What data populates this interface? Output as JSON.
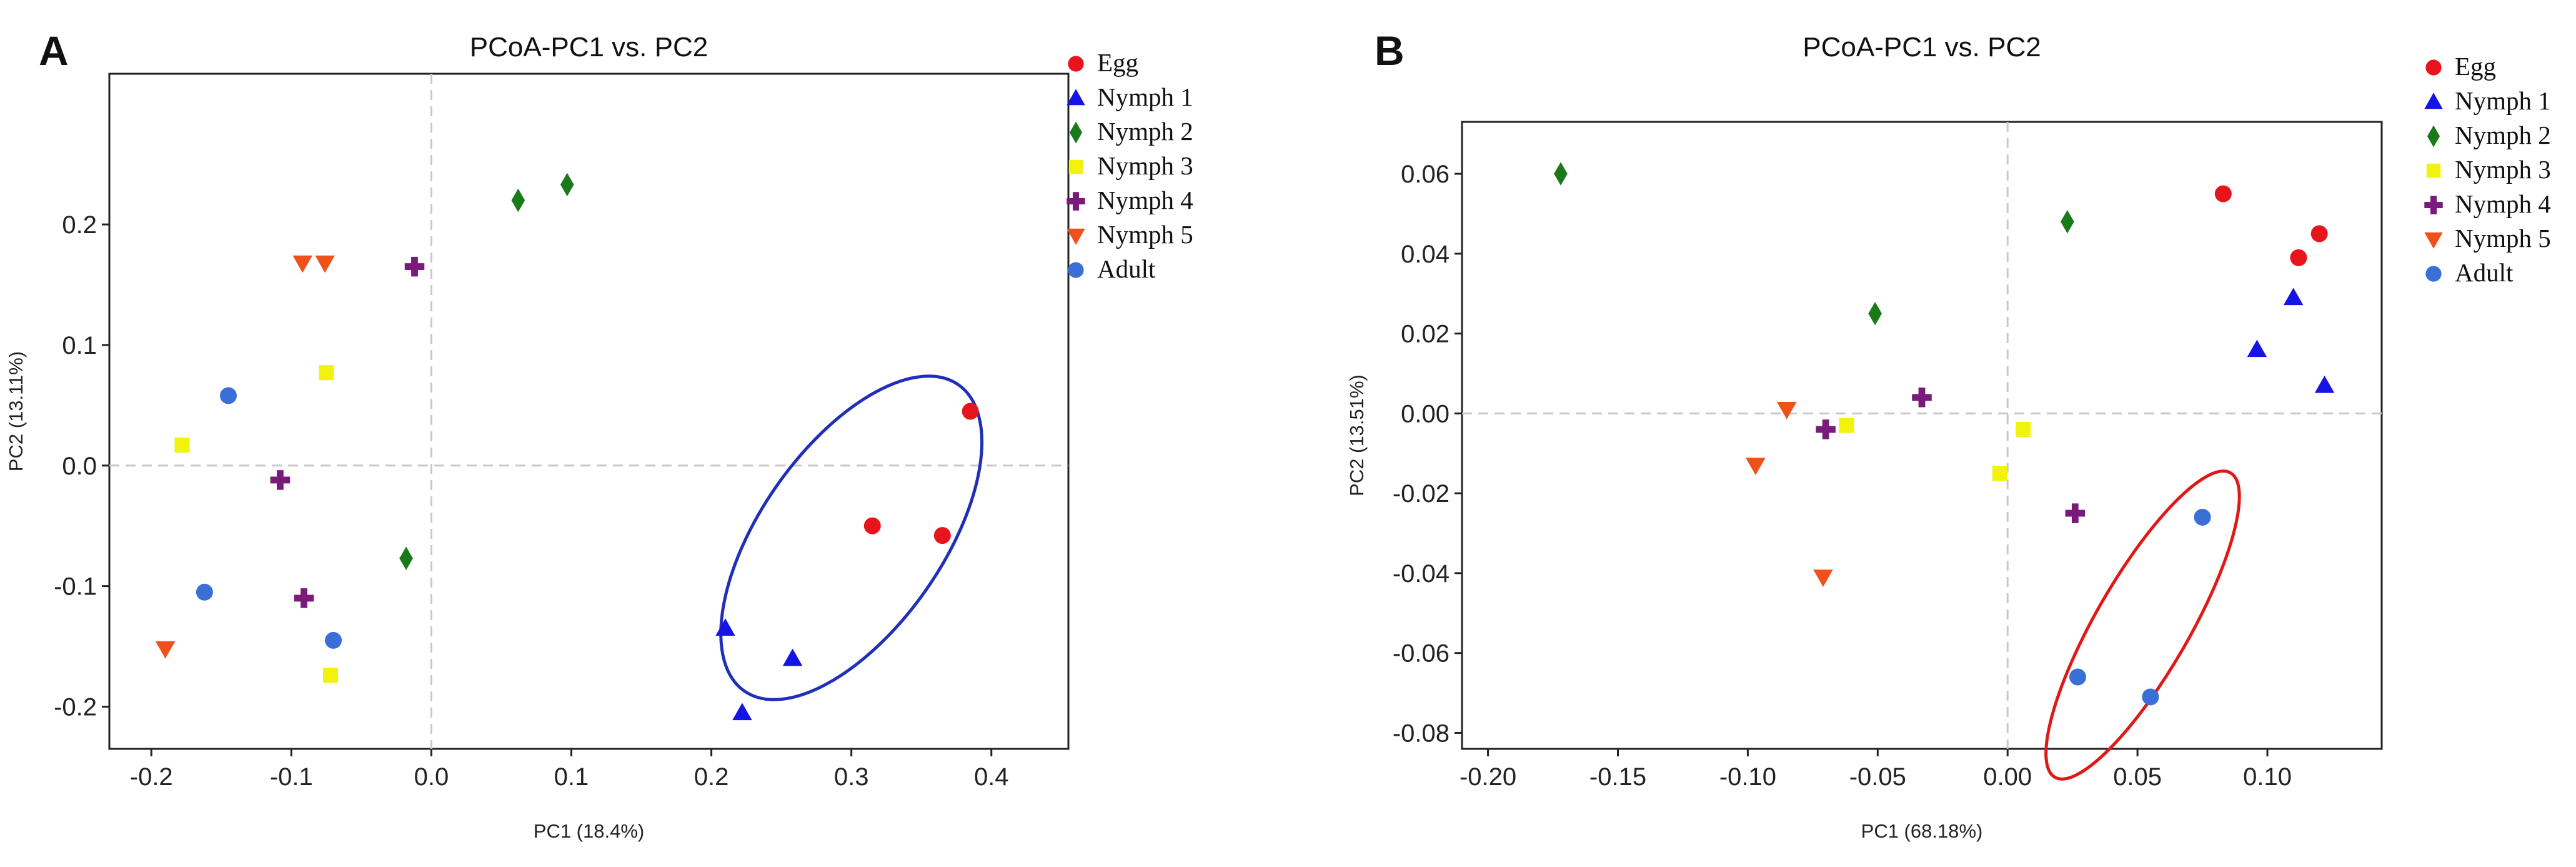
{
  "figure": {
    "panel_labels": [
      "A",
      "B"
    ]
  },
  "chart_data": [
    {
      "type": "scatter",
      "panel_label": "A",
      "title": "PCoA-PC1 vs. PC2",
      "xlabel": "PC1 (18.4%)",
      "ylabel": "PC2 (13.11%)",
      "xlim": [
        -0.23,
        0.455
      ],
      "ylim": [
        -0.235,
        0.325
      ],
      "xticks": [
        -0.2,
        -0.1,
        0.0,
        0.1,
        0.2,
        0.3,
        0.4
      ],
      "xtick_labels": [
        "-0.2",
        "-0.1",
        "0.0",
        "0.1",
        "0.2",
        "0.3",
        "0.4"
      ],
      "yticks": [
        -0.2,
        -0.1,
        0.0,
        0.1,
        0.2
      ],
      "ytick_labels": [
        "-0.2",
        "-0.1",
        "0.0",
        "0.1",
        "0.2"
      ],
      "reference_lines": {
        "x": 0,
        "y": 0
      },
      "legend_position": "top-right outside",
      "series": [
        {
          "name": "Egg",
          "marker": "circle",
          "color": "#e8141c",
          "points": [
            [
              0.315,
              -0.05
            ],
            [
              0.365,
              -0.058
            ],
            [
              0.385,
              0.045
            ]
          ]
        },
        {
          "name": "Nymph 1",
          "marker": "triangle-up",
          "color": "#1414e6",
          "points": [
            [
              0.21,
              -0.135
            ],
            [
              0.258,
              -0.16
            ],
            [
              0.222,
              -0.205
            ]
          ]
        },
        {
          "name": "Nymph 2",
          "marker": "diamond",
          "color": "#1a7a1a",
          "points": [
            [
              0.062,
              0.22
            ],
            [
              0.097,
              0.233
            ],
            [
              -0.018,
              -0.077
            ]
          ]
        },
        {
          "name": "Nymph 3",
          "marker": "square",
          "color": "#f2f20a",
          "points": [
            [
              -0.178,
              0.017
            ],
            [
              -0.075,
              0.077
            ],
            [
              -0.072,
              -0.174
            ]
          ]
        },
        {
          "name": "Nymph 4",
          "marker": "plus",
          "color": "#7a1a7a",
          "points": [
            [
              -0.012,
              0.165
            ],
            [
              -0.108,
              -0.012
            ],
            [
              -0.091,
              -0.11
            ]
          ]
        },
        {
          "name": "Nymph 5",
          "marker": "triangle-down",
          "color": "#f0501a",
          "points": [
            [
              -0.092,
              0.168
            ],
            [
              -0.076,
              0.168
            ],
            [
              -0.19,
              -0.152
            ]
          ]
        },
        {
          "name": "Adult",
          "marker": "circle",
          "color": "#3a6fd8",
          "points": [
            [
              -0.145,
              0.058
            ],
            [
              -0.162,
              -0.105
            ],
            [
              -0.07,
              -0.145
            ]
          ]
        }
      ],
      "annotations": [
        {
          "type": "ellipse",
          "color": "#1f2fb8",
          "center": [
            0.3,
            -0.06
          ],
          "radii_data": [
            0.065,
            0.155
          ],
          "rotation_deg": 35
        }
      ]
    },
    {
      "type": "scatter",
      "panel_label": "B",
      "title": "PCoA-PC1 vs. PC2",
      "xlabel": "PC1 (68.18%)",
      "ylabel": "PC2 (13.51%)",
      "xlim": [
        -0.21,
        0.144
      ],
      "ylim": [
        -0.084,
        0.073
      ],
      "xticks": [
        -0.2,
        -0.15,
        -0.1,
        -0.05,
        0.0,
        0.05,
        0.1
      ],
      "xtick_labels": [
        "-0.20",
        "-0.15",
        "-0.10",
        "-0.05",
        "0.00",
        "0.05",
        "0.10"
      ],
      "yticks": [
        -0.08,
        -0.06,
        -0.04,
        -0.02,
        0.0,
        0.02,
        0.04,
        0.06
      ],
      "ytick_labels": [
        "-0.08",
        "-0.06",
        "-0.04",
        "-0.02",
        "0.00",
        "0.02",
        "0.04",
        "0.06"
      ],
      "reference_lines": {
        "x": 0,
        "y": 0
      },
      "legend_position": "top-right outside",
      "series": [
        {
          "name": "Egg",
          "marker": "circle",
          "color": "#e8141c",
          "points": [
            [
              0.083,
              0.055
            ],
            [
              0.112,
              0.039
            ],
            [
              0.12,
              0.045
            ]
          ]
        },
        {
          "name": "Nymph 1",
          "marker": "triangle-up",
          "color": "#1414e6",
          "points": [
            [
              0.11,
              0.029
            ],
            [
              0.096,
              0.016
            ],
            [
              0.122,
              0.007
            ]
          ]
        },
        {
          "name": "Nymph 2",
          "marker": "diamond",
          "color": "#1a7a1a",
          "points": [
            [
              -0.172,
              0.06
            ],
            [
              0.023,
              0.048
            ],
            [
              -0.051,
              0.025
            ]
          ]
        },
        {
          "name": "Nymph 3",
          "marker": "square",
          "color": "#f2f20a",
          "points": [
            [
              -0.062,
              -0.003
            ],
            [
              0.006,
              -0.004
            ],
            [
              -0.003,
              -0.015
            ]
          ]
        },
        {
          "name": "Nymph 4",
          "marker": "plus",
          "color": "#7a1a7a",
          "points": [
            [
              -0.033,
              0.004
            ],
            [
              -0.07,
              -0.004
            ],
            [
              0.026,
              -0.025
            ]
          ]
        },
        {
          "name": "Nymph 5",
          "marker": "triangle-down",
          "color": "#f0501a",
          "points": [
            [
              -0.085,
              0.001
            ],
            [
              -0.097,
              -0.013
            ],
            [
              -0.071,
              -0.041
            ]
          ]
        },
        {
          "name": "Adult",
          "marker": "circle",
          "color": "#3a6fd8",
          "points": [
            [
              0.075,
              -0.026
            ],
            [
              0.027,
              -0.066
            ],
            [
              0.055,
              -0.071
            ]
          ]
        }
      ],
      "annotations": [
        {
          "type": "ellipse",
          "color": "#e01818",
          "center": [
            0.052,
            -0.053
          ],
          "radii_data": [
            0.018,
            0.044
          ],
          "rotation_deg": 30
        }
      ]
    }
  ]
}
